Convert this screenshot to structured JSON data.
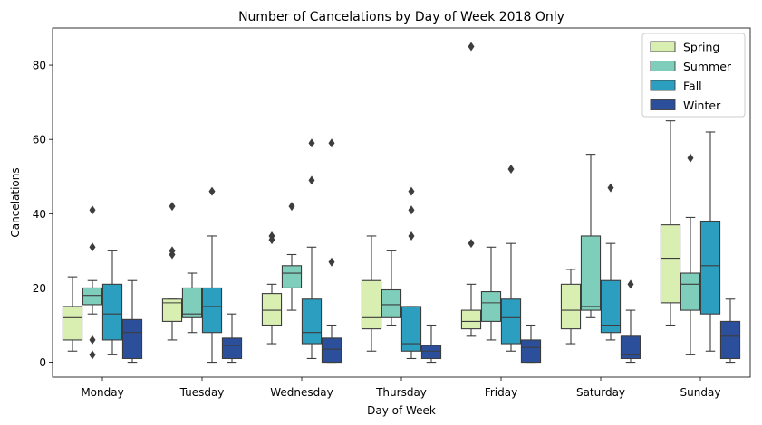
{
  "chart_data": {
    "type": "boxplot",
    "title": "Number of Cancelations by Day of Week 2018 Only",
    "xlabel": "Day of Week",
    "ylabel": "Cancelations",
    "ylim": [
      -4,
      90
    ],
    "yticks": [
      0,
      20,
      40,
      60,
      80
    ],
    "legend_position": "top-right",
    "categories": [
      "Monday",
      "Tuesday",
      "Wednesday",
      "Thursday",
      "Friday",
      "Saturday",
      "Sunday"
    ],
    "series": [
      {
        "name": "Spring",
        "color": "#d9efb1",
        "boxes": [
          {
            "whislo": 3,
            "q1": 6,
            "med": 12,
            "q3": 15,
            "whishi": 23,
            "fliers": []
          },
          {
            "whislo": 6,
            "q1": 11,
            "med": 16,
            "q3": 17,
            "whishi": 17,
            "fliers": [
              29,
              30,
              42
            ]
          },
          {
            "whislo": 5,
            "q1": 10,
            "med": 14,
            "q3": 18.5,
            "whishi": 21,
            "fliers": [
              33,
              34
            ]
          },
          {
            "whislo": 3,
            "q1": 9,
            "med": 12,
            "q3": 22,
            "whishi": 34,
            "fliers": []
          },
          {
            "whislo": 7,
            "q1": 9,
            "med": 11,
            "q3": 14,
            "whishi": 21,
            "fliers": [
              32,
              85
            ]
          },
          {
            "whislo": 5,
            "q1": 9,
            "med": 14,
            "q3": 21,
            "whishi": 25,
            "fliers": []
          },
          {
            "whislo": 10,
            "q1": 16,
            "med": 28,
            "q3": 37,
            "whishi": 65,
            "fliers": []
          }
        ]
      },
      {
        "name": "Summer",
        "color": "#7fcdbb",
        "boxes": [
          {
            "whislo": 13,
            "q1": 15.5,
            "med": 18,
            "q3": 20,
            "whishi": 22,
            "fliers": [
              2,
              6,
              31,
              41
            ]
          },
          {
            "whislo": 8,
            "q1": 12,
            "med": 13,
            "q3": 20,
            "whishi": 24,
            "fliers": []
          },
          {
            "whislo": 14,
            "q1": 20,
            "med": 24,
            "q3": 26,
            "whishi": 29,
            "fliers": [
              42
            ]
          },
          {
            "whislo": 10,
            "q1": 12,
            "med": 15.5,
            "q3": 19.5,
            "whishi": 30,
            "fliers": []
          },
          {
            "whislo": 6,
            "q1": 11,
            "med": 16,
            "q3": 19,
            "whishi": 31,
            "fliers": []
          },
          {
            "whislo": 12,
            "q1": 14,
            "med": 15,
            "q3": 34,
            "whishi": 56,
            "fliers": []
          },
          {
            "whislo": 2,
            "q1": 14,
            "med": 21,
            "q3": 24,
            "whishi": 39,
            "fliers": [
              55
            ]
          }
        ]
      },
      {
        "name": "Fall",
        "color": "#2c9ec0",
        "boxes": [
          {
            "whislo": 2,
            "q1": 6,
            "med": 13,
            "q3": 21,
            "whishi": 30,
            "fliers": []
          },
          {
            "whislo": 0,
            "q1": 8,
            "med": 15,
            "q3": 20,
            "whishi": 34,
            "fliers": [
              46
            ]
          },
          {
            "whislo": 1,
            "q1": 5,
            "med": 8,
            "q3": 17,
            "whishi": 31,
            "fliers": [
              49,
              59
            ]
          },
          {
            "whislo": 1,
            "q1": 3,
            "med": 5,
            "q3": 15,
            "whishi": 15,
            "fliers": [
              34,
              41,
              46
            ]
          },
          {
            "whislo": 3,
            "q1": 5,
            "med": 12,
            "q3": 17,
            "whishi": 32,
            "fliers": [
              52
            ]
          },
          {
            "whislo": 6,
            "q1": 8,
            "med": 10,
            "q3": 22,
            "whishi": 32,
            "fliers": [
              47
            ]
          },
          {
            "whislo": 3,
            "q1": 13,
            "med": 26,
            "q3": 38,
            "whishi": 62,
            "fliers": []
          }
        ]
      },
      {
        "name": "Winter",
        "color": "#2c4f9c",
        "boxes": [
          {
            "whislo": 0,
            "q1": 1,
            "med": 8,
            "q3": 11.5,
            "whishi": 22,
            "fliers": []
          },
          {
            "whislo": 0,
            "q1": 1,
            "med": 4.5,
            "q3": 6.5,
            "whishi": 13,
            "fliers": []
          },
          {
            "whislo": 0,
            "q1": 0,
            "med": 3.5,
            "q3": 6.5,
            "whishi": 10,
            "fliers": [
              27,
              59
            ]
          },
          {
            "whislo": 0,
            "q1": 1,
            "med": 3,
            "q3": 4.5,
            "whishi": 10,
            "fliers": []
          },
          {
            "whislo": 0,
            "q1": 0,
            "med": 4,
            "q3": 6,
            "whishi": 10,
            "fliers": []
          },
          {
            "whislo": 0,
            "q1": 1,
            "med": 2,
            "q3": 7,
            "whishi": 14,
            "fliers": [
              21
            ]
          },
          {
            "whislo": 0,
            "q1": 1,
            "med": 7,
            "q3": 11,
            "whishi": 17,
            "fliers": []
          }
        ]
      }
    ]
  }
}
